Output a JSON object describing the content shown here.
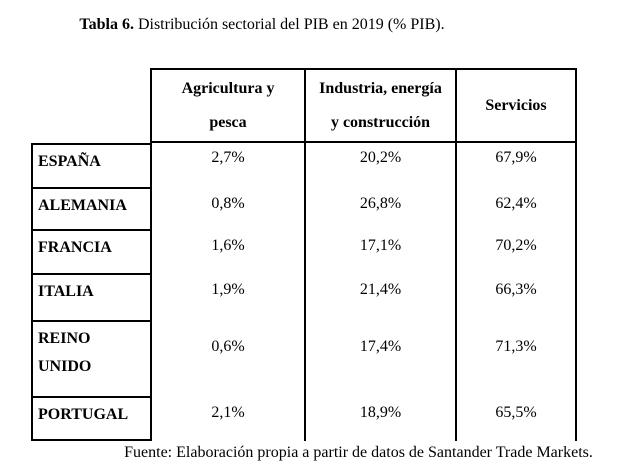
{
  "page": {
    "title": {
      "label": "Tabla 6.",
      "text": " Distribución sectorial del PIB en 2019 (% PIB)."
    },
    "footer": "Fuente: Elaboración propia a partir de datos de Santander Trade Markets."
  },
  "table": {
    "headers": [
      {
        "lines": [
          "Agricultura y",
          "pesca"
        ]
      },
      {
        "lines": [
          "Industria, energía",
          "y construcción"
        ]
      },
      {
        "lines": [
          "Servicios"
        ]
      }
    ],
    "rows": [
      {
        "country_lines": [
          "ESPAÑA"
        ],
        "values": [
          "2,7%",
          "20,2%",
          "67,9%"
        ]
      },
      {
        "country_lines": [
          "ALEMANIA"
        ],
        "values": [
          "0,8%",
          "26,8%",
          "62,4%"
        ]
      },
      {
        "country_lines": [
          "FRANCIA"
        ],
        "values": [
          "1,6%",
          "17,1%",
          "70,2%"
        ]
      },
      {
        "country_lines": [
          "ITALIA"
        ],
        "values": [
          "1,9%",
          "21,4%",
          "66,3%"
        ]
      },
      {
        "country_lines": [
          "REINO",
          "UNIDO"
        ],
        "values": [
          "0,6%",
          "17,4%",
          "71,3%"
        ]
      },
      {
        "country_lines": [
          "PORTUGAL"
        ],
        "values": [
          "2,1%",
          "18,9%",
          "65,5%"
        ]
      }
    ]
  },
  "chart_data": {
    "type": "table",
    "title": "Tabla 6. Distribución sectorial del PIB en 2019 (% PIB).",
    "columns": [
      "",
      "Agricultura y pesca",
      "Industria, energía y construcción",
      "Servicios"
    ],
    "rows": [
      [
        "ESPAÑA",
        "2,7%",
        "20,2%",
        "67,9%"
      ],
      [
        "ALEMANIA",
        "0,8%",
        "26,8%",
        "62,4%"
      ],
      [
        "FRANCIA",
        "1,6%",
        "17,1%",
        "70,2%"
      ],
      [
        "ITALIA",
        "1,9%",
        "21,4%",
        "66,3%"
      ],
      [
        "REINO UNIDO",
        "0,6%",
        "17,4%",
        "71,3%"
      ],
      [
        "PORTUGAL",
        "2,1%",
        "18,9%",
        "65,5%"
      ]
    ],
    "source": "Fuente: Elaboración propia a partir de datos de Santander Trade Markets."
  }
}
